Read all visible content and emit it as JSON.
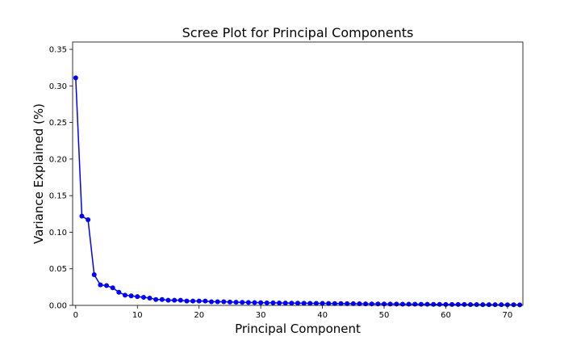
{
  "chart_data": {
    "type": "line",
    "title": "Scree Plot for Principal Components",
    "xlabel": "Principal Component",
    "ylabel": "Variance Explained (%)",
    "xlim": [
      -0.5,
      72.5
    ],
    "ylim": [
      0,
      0.36
    ],
    "xticks": [
      0,
      10,
      20,
      30,
      40,
      50,
      60,
      70
    ],
    "yticks": [
      0.0,
      0.05,
      0.1,
      0.15,
      0.2,
      0.25,
      0.3,
      0.35
    ],
    "grid": false,
    "line_color": "#0000ff",
    "marker": "circle",
    "series": [
      {
        "x": [
          0,
          1,
          2,
          3,
          4,
          5,
          6,
          7,
          8,
          9,
          10,
          11,
          12,
          13,
          14,
          15,
          16,
          17,
          18,
          19,
          20,
          21,
          22,
          23,
          24,
          25,
          26,
          27,
          28,
          29,
          30,
          31,
          32,
          33,
          34,
          35,
          36,
          37,
          38,
          39,
          40,
          41,
          42,
          43,
          44,
          45,
          46,
          47,
          48,
          49,
          50,
          51,
          52,
          53,
          54,
          55,
          56,
          57,
          58,
          59,
          60,
          61,
          62,
          63,
          64,
          65,
          66,
          67,
          68,
          69,
          70,
          71,
          72
        ],
        "values": [
          0.311,
          0.122,
          0.117,
          0.042,
          0.028,
          0.027,
          0.024,
          0.018,
          0.014,
          0.013,
          0.012,
          0.011,
          0.01,
          0.008,
          0.008,
          0.007,
          0.007,
          0.007,
          0.006,
          0.006,
          0.006,
          0.006,
          0.005,
          0.005,
          0.005,
          0.0045,
          0.0043,
          0.0041,
          0.004,
          0.0038,
          0.0037,
          0.0035,
          0.0034,
          0.0033,
          0.0032,
          0.0031,
          0.003,
          0.0029,
          0.0028,
          0.0028,
          0.0027,
          0.0026,
          0.0025,
          0.0025,
          0.0024,
          0.0023,
          0.0022,
          0.0021,
          0.002,
          0.002,
          0.0019,
          0.0018,
          0.0018,
          0.0017,
          0.0016,
          0.0016,
          0.0015,
          0.0015,
          0.0014,
          0.0014,
          0.0013,
          0.0013,
          0.0012,
          0.0012,
          0.0011,
          0.0011,
          0.001,
          0.001,
          0.0009,
          0.0009,
          0.0008,
          0.0008,
          0.0007
        ]
      }
    ]
  }
}
